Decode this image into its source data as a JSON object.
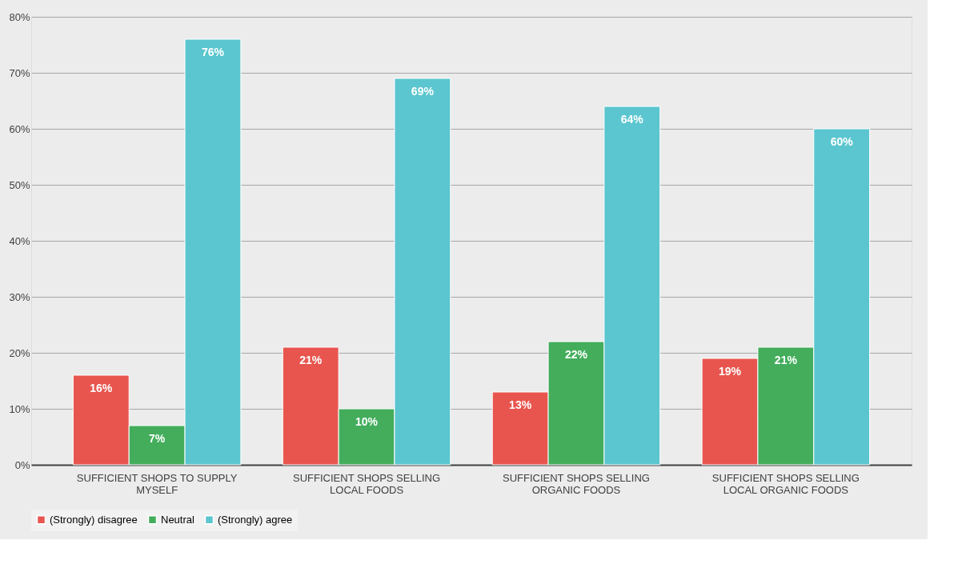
{
  "chart_data": {
    "type": "bar",
    "categories": [
      "SUFFICIENT SHOPS TO SUPPLY MYSELF",
      "SUFFICIENT SHOPS SELLING LOCAL FOODS",
      "SUFFICIENT SHOPS SELLING ORGANIC FOODS",
      "SUFFICIENT SHOPS SELLING LOCAL ORGANIC FOODS"
    ],
    "series": [
      {
        "name": "(Strongly) disagree",
        "color": "#e8554e",
        "values": [
          16,
          21,
          13,
          19
        ],
        "value_labels": [
          "16%",
          "21%",
          "13%",
          "19%"
        ]
      },
      {
        "name": "Neutral",
        "color": "#43ad5c",
        "values": [
          7,
          10,
          22,
          21
        ],
        "value_labels": [
          "7%",
          "10%",
          "22%",
          "21%"
        ]
      },
      {
        "name": "(Strongly) agree",
        "color": "#5bc6cf",
        "values": [
          76,
          69,
          64,
          60
        ],
        "value_labels": [
          "76%",
          "69%",
          "64%",
          "60%"
        ]
      }
    ],
    "ylim": [
      0,
      80
    ],
    "yticks": [
      {
        "value": 0,
        "label": "0%"
      },
      {
        "value": 10,
        "label": "10%"
      },
      {
        "value": 20,
        "label": "20%"
      },
      {
        "value": 30,
        "label": "30%"
      },
      {
        "value": 40,
        "label": "40%"
      },
      {
        "value": 50,
        "label": "50%"
      },
      {
        "value": 60,
        "label": "60%"
      },
      {
        "value": 70,
        "label": "70%"
      },
      {
        "value": 80,
        "label": "80%"
      }
    ],
    "grid": "y",
    "legend": "bottom"
  }
}
